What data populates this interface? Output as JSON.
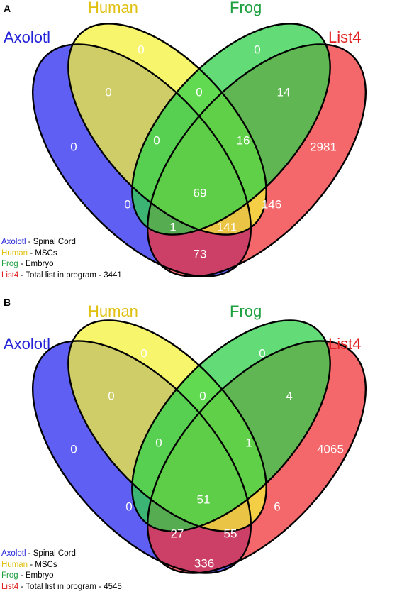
{
  "panels": [
    {
      "letter": "A",
      "set_labels": {
        "axolotl": "Axolotl",
        "human": "Human",
        "frog": "Frog",
        "list4": "List4"
      },
      "counts": {
        "axolotl_only": "0",
        "human_only": "0",
        "frog_only": "0",
        "list4_only": "2981",
        "axolotl_human": "0",
        "human_frog": "0",
        "frog_list4": "14",
        "axolotl_human_frog": "0",
        "human_frog_list4": "16",
        "axolotl_frog": "0",
        "all_four": "69",
        "human_list4": "146",
        "axolotl_frog_list4": "1",
        "axolotl_human_list4": "141",
        "axolotl_list4": "73"
      },
      "legend": [
        {
          "name": "Axolotl",
          "desc": " - Spinal Cord"
        },
        {
          "name": "Human",
          "desc": " - MSCs"
        },
        {
          "name": "Frog",
          "desc": " - Embryo"
        },
        {
          "name": "List4",
          "desc": " - Total list in program - 3441"
        }
      ]
    },
    {
      "letter": "B",
      "set_labels": {
        "axolotl": "Axolotl",
        "human": "Human",
        "frog": "Frog",
        "list4": "List4"
      },
      "counts": {
        "axolotl_only": "0",
        "human_only": "0",
        "frog_only": "0",
        "list4_only": "4065",
        "axolotl_human": "0",
        "human_frog": "0",
        "frog_list4": "4",
        "axolotl_human_frog": "0",
        "human_frog_list4": "1",
        "axolotl_frog": "0",
        "all_four": "51",
        "human_list4": "6",
        "axolotl_frog_list4": "27",
        "axolotl_human_list4": "55",
        "axolotl_list4": "336"
      },
      "legend": [
        {
          "name": "Axolotl",
          "desc": " - Spinal Cord"
        },
        {
          "name": "Human",
          "desc": " - MSCs"
        },
        {
          "name": "Frog",
          "desc": " - Embryo"
        },
        {
          "name": "List4",
          "desc": " - Total list in program - 4545"
        }
      ]
    }
  ],
  "colors": {
    "axolotl": "#2a2af0",
    "human": "#f4f23a",
    "frog": "#2fd04a",
    "list4": "#f0363a",
    "axolotl_label": "#2323d8",
    "human_label": "#e0c010",
    "frog_label": "#1ea040",
    "list4_label": "#e02020"
  }
}
